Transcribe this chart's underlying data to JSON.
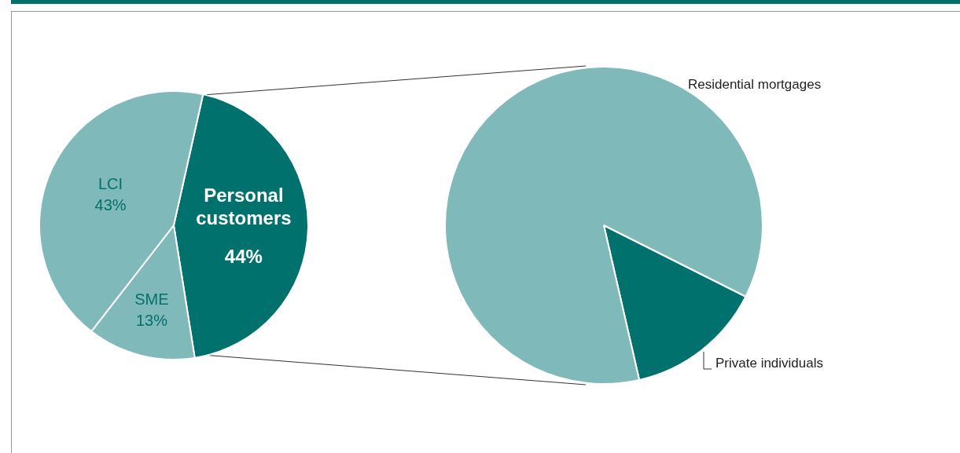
{
  "chart_data": [
    {
      "type": "pie",
      "categories": [
        "Personal customers",
        "SME",
        "LCI"
      ],
      "values": [
        44,
        13,
        43
      ],
      "value_labels": [
        "44%",
        "13%",
        "43%"
      ],
      "colors": [
        "#00716d",
        "#80b9b9",
        "#80b9b9"
      ]
    },
    {
      "type": "pie",
      "categories": [
        "Private individuals",
        "Residential mortgages"
      ],
      "values": [
        14,
        86
      ],
      "colors": [
        "#00716d",
        "#80b9b9"
      ]
    }
  ]
}
